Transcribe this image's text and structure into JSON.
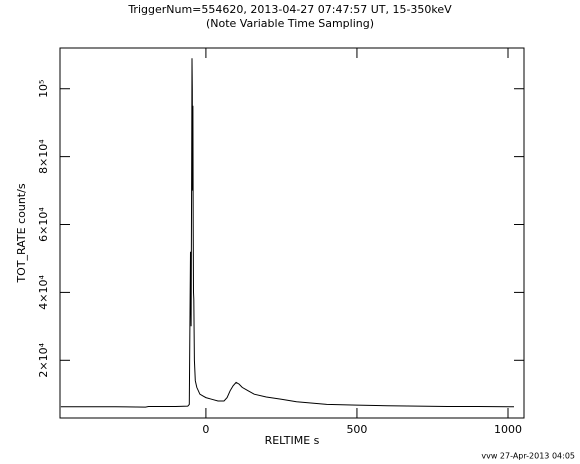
{
  "chart_data": {
    "type": "line",
    "title": "TriggerNum=554620, 2013-04-27 07:47:57 UT, 15-350keV",
    "subtitle": "(Note Variable Time Sampling)",
    "x_label": "RELTIME  s",
    "y_label": "TOT_RATE  count/s",
    "footer": "vvw 27-Apr-2013 04:05",
    "xlim": [
      -483,
      1053
    ],
    "ylim": [
      3000,
      112000
    ],
    "xticks": [
      0,
      500,
      1000
    ],
    "yticks": [
      {
        "value": 20000,
        "label": "2×10⁴"
      },
      {
        "value": 40000,
        "label": "4×10⁴"
      },
      {
        "value": 60000,
        "label": "6×10⁴"
      },
      {
        "value": 80000,
        "label": "8×10⁴"
      },
      {
        "value": 100000,
        "label": "10⁵"
      }
    ],
    "series": [
      {
        "color": "#000000",
        "x": [
          -480,
          -300,
          -200,
          -190,
          -100,
          -60,
          -55,
          -53,
          -51,
          -49,
          -47,
          -46,
          -45,
          -44,
          -43,
          -42,
          -41,
          -40,
          -38,
          -35,
          -30,
          -20,
          -10,
          0,
          20,
          40,
          60,
          70,
          80,
          90,
          100,
          110,
          120,
          140,
          160,
          200,
          250,
          300,
          400,
          500,
          600,
          700,
          800,
          900,
          1000,
          1020
        ],
        "values": [
          6300,
          6300,
          6200,
          6400,
          6400,
          6500,
          7000,
          30000,
          52000,
          30000,
          80000,
          109000,
          100000,
          70000,
          95000,
          60000,
          40000,
          38000,
          20000,
          14000,
          12000,
          10000,
          9500,
          9000,
          8500,
          8000,
          8000,
          9000,
          11000,
          12500,
          13500,
          13000,
          12000,
          11000,
          10000,
          9200,
          8500,
          7800,
          7000,
          6800,
          6600,
          6500,
          6400,
          6400,
          6300,
          6300
        ]
      }
    ]
  }
}
